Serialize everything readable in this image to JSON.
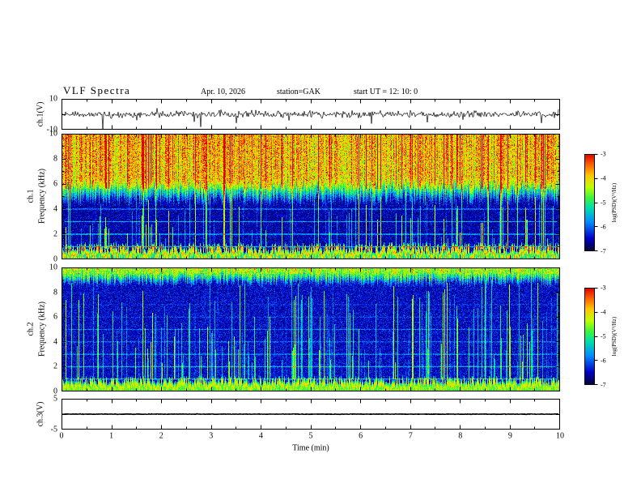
{
  "title": "VLF  Spectra",
  "header": {
    "date": "Apr. 10, 2026",
    "station": "station=GAK",
    "start_ut": "start UT  =   12: 10: 0"
  },
  "axes": {
    "time_label": "Time  (min)",
    "time_ticks": [
      "0",
      "1",
      "2",
      "3",
      "4",
      "5",
      "6",
      "7",
      "8",
      "9",
      "10"
    ],
    "ch1v": {
      "label": "ch.1(V)",
      "ticks": [
        "10",
        "-10"
      ]
    },
    "ch1_spec": {
      "channel": "ch.1",
      "label": "Frequency  (kHz)",
      "ticks": [
        "10",
        "8",
        "6",
        "4",
        "2",
        "0"
      ]
    },
    "ch2_spec": {
      "channel": "ch.2",
      "label": "Frequency  (kHz)",
      "ticks": [
        "10",
        "8",
        "6",
        "4",
        "2",
        "0"
      ]
    },
    "ch3v": {
      "label": "ch.3(V)",
      "ticks": [
        "5",
        "-5"
      ]
    }
  },
  "colorbar": {
    "label": "log(PSD)(V²/Hz)",
    "ticks": [
      "-3",
      "-4",
      "-5",
      "-6",
      "-7"
    ],
    "zlim": [
      -7,
      -3
    ],
    "colormap_stops": [
      [
        0.0,
        [
          5,
          5,
          50
        ]
      ],
      [
        0.13,
        [
          0,
          0,
          200
        ]
      ],
      [
        0.3,
        [
          0,
          140,
          255
        ]
      ],
      [
        0.45,
        [
          0,
          225,
          170
        ]
      ],
      [
        0.55,
        [
          60,
          245,
          60
        ]
      ],
      [
        0.66,
        [
          190,
          255,
          0
        ]
      ],
      [
        0.78,
        [
          255,
          200,
          0
        ]
      ],
      [
        0.88,
        [
          255,
          110,
          0
        ]
      ],
      [
        1.0,
        [
          225,
          0,
          0
        ]
      ]
    ]
  },
  "chart_data": [
    {
      "type": "line",
      "name": "ch.1 waveform",
      "xlabel": "Time (min)",
      "ylabel": "ch.1(V)",
      "xlim": [
        0,
        10
      ],
      "ylim": [
        -10,
        10
      ],
      "yticks": [
        10,
        -10
      ],
      "description": "Continuous broadband noise of roughly ±2-3 V for the full 10 minutes with sporadic impulsive spikes reaching about -9 V downward and +4 V upward",
      "render": {
        "seed": 11,
        "sigma": 1.9,
        "lw": 0.7,
        "spike_down_prob": 0.02,
        "spike_down_max": 8,
        "spike_up_prob": 0.008,
        "spike_up_max": 3
      }
    },
    {
      "type": "heatmap",
      "name": "ch.1 spectrogram",
      "xlabel": "Time (min)",
      "ylabel": "Frequency (kHz)",
      "zlabel": "log(PSD)(V²/Hz)",
      "xlim": [
        0,
        10
      ],
      "ylim": [
        0,
        10
      ],
      "zlim": [
        -7,
        -3
      ],
      "yticks": [
        10,
        8,
        6,
        4,
        2,
        0
      ],
      "description": "Intense broadband hiss (PSD -4 to -3) above ~5.5-6 kHz with ragged lower edge; dark background (-7 to -6) from about 1-5 kHz crossed by dense vertical impulsive streaks (green, -5); narrow horizontal lines near 1, 2, 3 and 4 kHz; bright orange band 0.2-0.9 kHz peaking about -3.5 near 0.5 kHz",
      "render": {
        "seed": 23,
        "edge_wiggle": 0.9,
        "bands": [
          {
            "f0": 6.1,
            "f1": 11,
            "v0": -3.95,
            "v1": -3.8,
            "n": 0.95,
            "sm": 0.25
          },
          {
            "f0": 4.6,
            "f1": 6.1,
            "v0": -6.5,
            "v1": -3.95,
            "n": 0.6,
            "sm": 0.9
          },
          {
            "f0": 0.9,
            "f1": 4.6,
            "v0": -6.55,
            "v1": -6.55,
            "n": 0.5,
            "sm": 1.0
          },
          {
            "f0": 0.62,
            "f1": 0.9,
            "v0": -4.15,
            "v1": -5.6,
            "n": 0.35,
            "sm": 0.15
          },
          {
            "f0": 0.42,
            "f1": 0.62,
            "v0": -3.6,
            "v1": -4.15,
            "n": 0.3,
            "sm": 0.15
          },
          {
            "f0": 0.15,
            "f1": 0.42,
            "v0": -4.6,
            "v1": -3.9,
            "n": 0.35,
            "sm": 0.15
          },
          {
            "f0": -1,
            "f1": 0.15,
            "v0": -5.8,
            "v1": -4.9,
            "n": 0.4,
            "sm": 0.1
          }
        ],
        "hlines": [
          {
            "f": 1,
            "b": 1.1,
            "w": 0.08
          },
          {
            "f": 2,
            "b": 1.1,
            "w": 0.09
          },
          {
            "f": 3,
            "b": 0.95,
            "w": 0.07
          },
          {
            "f": 4,
            "b": 0.9,
            "w": 0.07
          }
        ],
        "streak": {
          "thresh": 0.76,
          "gain": 2.5,
          "flo": 0.85,
          "fmin": 1.6,
          "fmax": 6.2
        },
        "hot": {
          "fmin": 5.6,
          "var": 0.9,
          "sgain": 0.6
        }
      }
    },
    {
      "type": "heatmap",
      "name": "ch.2 spectrogram",
      "xlabel": "Time (min)",
      "ylabel": "Frequency (kHz)",
      "zlabel": "log(PSD)(V²/Hz)",
      "xlim": [
        0,
        10
      ],
      "ylim": [
        0,
        10
      ],
      "zlim": [
        -7,
        -3
      ],
      "yticks": [
        10,
        8,
        6,
        4,
        2,
        0
      ],
      "description": "Mostly dark blue background (-7 to -6) from ~1-9 kHz crossed by many tall vertical impulsive streaks (green/cyan, -5); enhanced green-yellow band above ~9.4 kHz; faint horizontal lines near 1-5 kHz; bright orange band below ~0.9 kHz",
      "render": {
        "seed": 57,
        "edge_wiggle": 0.7,
        "bands": [
          {
            "f0": 9.45,
            "f1": 11,
            "v0": -4.55,
            "v1": -4.3,
            "n": 0.75,
            "sm": 0.3
          },
          {
            "f0": 8.7,
            "f1": 9.45,
            "v0": -6.4,
            "v1": -4.55,
            "n": 0.6,
            "sm": 0.9
          },
          {
            "f0": 0.9,
            "f1": 8.7,
            "v0": -6.45,
            "v1": -6.45,
            "n": 0.5,
            "sm": 1.0
          },
          {
            "f0": 0.6,
            "f1": 0.9,
            "v0": -4.35,
            "v1": -5.7,
            "n": 0.35,
            "sm": 0.15
          },
          {
            "f0": 0.28,
            "f1": 0.6,
            "v0": -4.0,
            "v1": -4.35,
            "n": 0.3,
            "sm": 0.15
          },
          {
            "f0": -1,
            "f1": 0.28,
            "v0": -5.4,
            "v1": -4.6,
            "n": 0.4,
            "sm": 0.1
          }
        ],
        "hlines": [
          {
            "f": 1,
            "b": 0.95,
            "w": 0.08
          },
          {
            "f": 2,
            "b": 0.9,
            "w": 0.08
          },
          {
            "f": 3,
            "b": 0.85,
            "w": 0.07
          },
          {
            "f": 4,
            "b": 0.6,
            "w": 0.07
          },
          {
            "f": 5,
            "b": 0.5,
            "w": 0.07
          },
          {
            "f": 6,
            "b": 0.35,
            "w": 0.06
          },
          {
            "f": 7,
            "b": 0.3,
            "w": 0.06
          }
        ],
        "streak": {
          "thresh": 0.6,
          "gain": 2.1,
          "flo": 0.95,
          "fmin": 2.2,
          "fmax": 9.3
        },
        "hot": {
          "fmin": 9.5,
          "var": 0.6,
          "sgain": 0.3
        }
      }
    },
    {
      "type": "line",
      "name": "ch.3 waveform",
      "xlabel": "Time (min)",
      "ylabel": "ch.3(V)",
      "xlim": [
        0,
        10
      ],
      "ylim": [
        -5,
        5
      ],
      "yticks": [
        5,
        -5
      ],
      "description": "Flat trace at approximately 0 V for the entire 10 minute interval",
      "render": {
        "seed": 99,
        "sigma": 0.07,
        "lw": 1.6,
        "spike_down_prob": 0,
        "spike_down_max": 0,
        "spike_up_prob": 0,
        "spike_up_max": 0
      }
    }
  ]
}
